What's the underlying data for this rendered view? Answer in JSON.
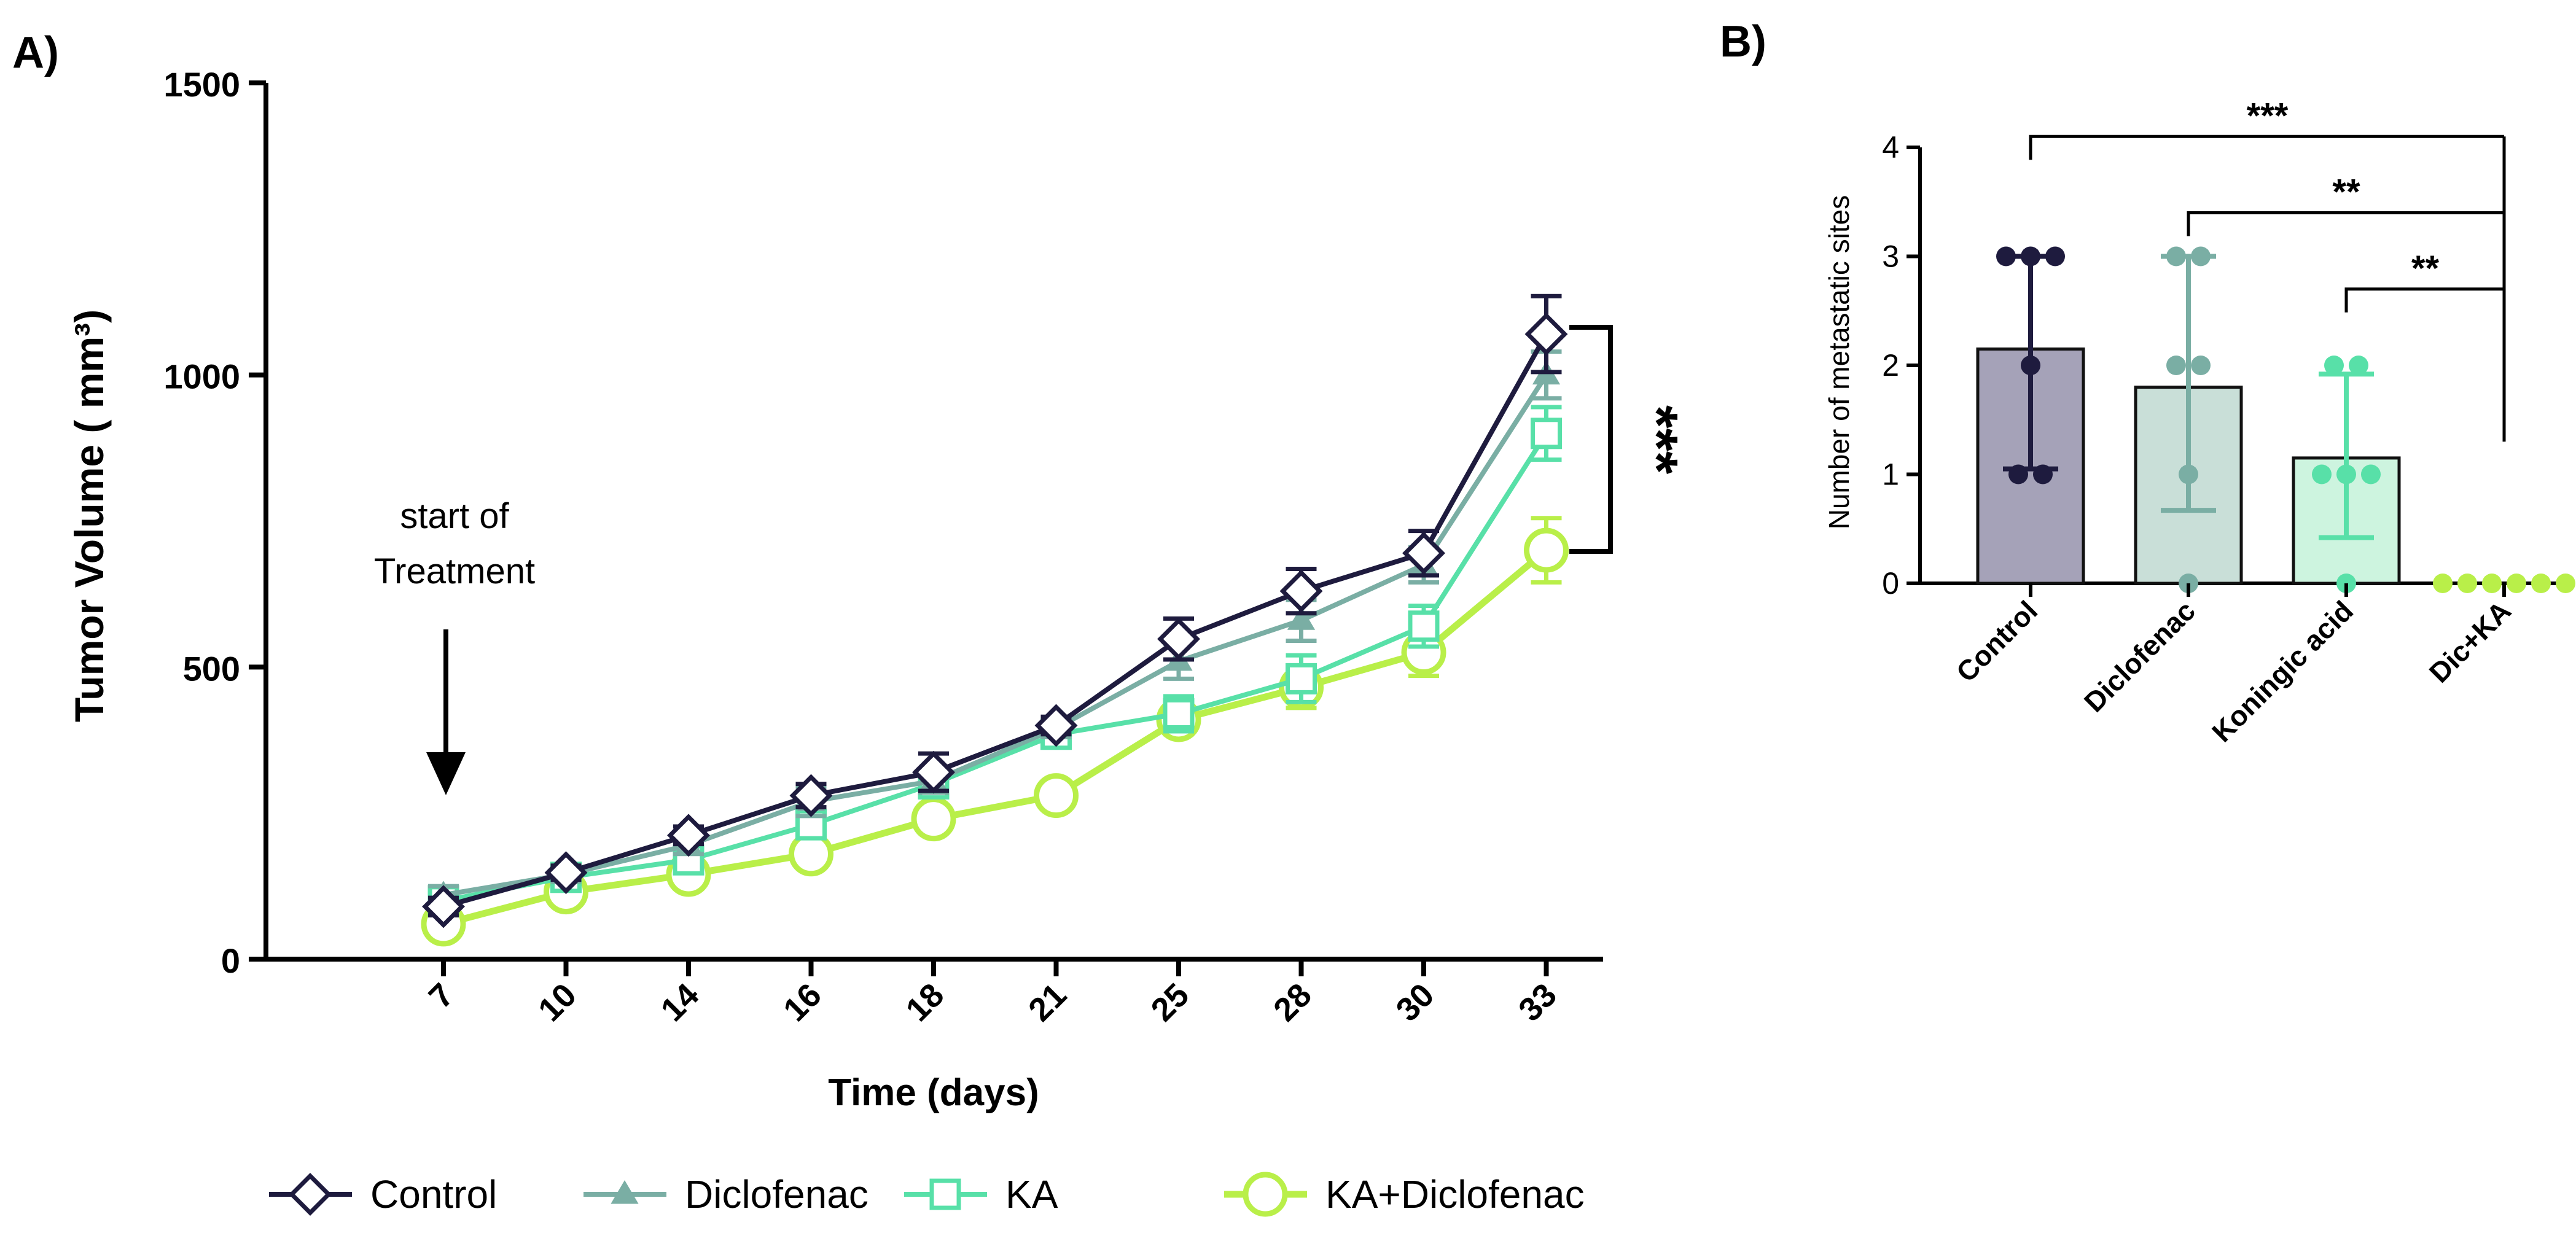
{
  "colors": {
    "control": "#1e1b3e",
    "diclofenac": "#7aaea4",
    "ka": "#58e0a8",
    "ka_diclofenac": "#b9ef49",
    "bar_control": "#a5a2b8",
    "bar_diclofenac": "#c9dfd8",
    "bar_ka": "#cdf4df",
    "axis": "#000000"
  },
  "chart_data": [
    {
      "id": "A",
      "panel_label": "A)",
      "type": "line",
      "xlabel": "Time (days)",
      "ylabel": "Tumor Volume ( mm³)",
      "ylim": [
        0,
        1500
      ],
      "yticks": [
        0,
        500,
        1000,
        1500
      ],
      "x": [
        "7",
        "10",
        "14",
        "16",
        "18",
        "21",
        "25",
        "28",
        "30",
        "33"
      ],
      "series": [
        {
          "name": "Control",
          "marker": "diamond",
          "color_key": "control",
          "values": [
            90,
            148,
            212,
            280,
            320,
            400,
            548,
            630,
            695,
            1070
          ],
          "errors": [
            15,
            12,
            15,
            20,
            32,
            15,
            35,
            38,
            38,
            65
          ]
        },
        {
          "name": "Diclofenac",
          "marker": "triangle",
          "color_key": "diclofenac",
          "values": [
            110,
            145,
            195,
            270,
            305,
            395,
            510,
            580,
            675,
            1000
          ],
          "errors": [
            15,
            12,
            15,
            25,
            20,
            15,
            30,
            35,
            30,
            40
          ]
        },
        {
          "name": "KA",
          "marker": "square",
          "color_key": "ka",
          "values": [
            100,
            140,
            170,
            230,
            300,
            385,
            420,
            480,
            570,
            900
          ],
          "errors": [
            15,
            12,
            15,
            20,
            20,
            15,
            30,
            40,
            35,
            45
          ]
        },
        {
          "name": "KA+Diclofenac",
          "marker": "circle",
          "color_key": "ka_diclofenac",
          "values": [
            60,
            115,
            145,
            180,
            240,
            280,
            410,
            465,
            525,
            700
          ],
          "errors": [
            10,
            10,
            12,
            15,
            15,
            15,
            25,
            35,
            40,
            55
          ]
        }
      ],
      "annotations": {
        "arrow_text_line1": "start of",
        "arrow_text_line2": "Treatment",
        "arrow_at_x": "7",
        "significance": "***",
        "significance_range": [
          700,
          1080
        ]
      }
    },
    {
      "id": "B",
      "panel_label": "B)",
      "type": "bar",
      "ylabel": "Number of metastatic sites",
      "ylim": [
        0,
        4
      ],
      "yticks": [
        0,
        1,
        2,
        3,
        4
      ],
      "categories": [
        "Control",
        "Diclofenac",
        "Koningic acid",
        "Dic+KA"
      ],
      "values": [
        2.15,
        1.8,
        1.15,
        0
      ],
      "error_low": [
        1.05,
        0.67,
        0.42,
        0
      ],
      "error_high": [
        3.0,
        3.0,
        1.92,
        0
      ],
      "points": [
        [
          3,
          3,
          3,
          2,
          1,
          1
        ],
        [
          3,
          3,
          2,
          2,
          1,
          0
        ],
        [
          2,
          2,
          1,
          1,
          1,
          0
        ],
        [
          0,
          0,
          0,
          0,
          0,
          0
        ]
      ],
      "bar_color_keys": [
        "bar_control",
        "bar_diclofenac",
        "bar_ka",
        "ka_diclofenac"
      ],
      "point_color_keys": [
        "control",
        "diclofenac",
        "ka",
        "ka_diclofenac"
      ],
      "comparisons": [
        {
          "from": "Control",
          "to": "Dic+KA",
          "label": "***",
          "level": 4.1
        },
        {
          "from": "Diclofenac",
          "to": "Dic+KA",
          "label": "**",
          "level": 3.4
        },
        {
          "from": "Koningic acid",
          "to": "Dic+KA",
          "label": "**",
          "level": 2.7
        }
      ]
    }
  ]
}
